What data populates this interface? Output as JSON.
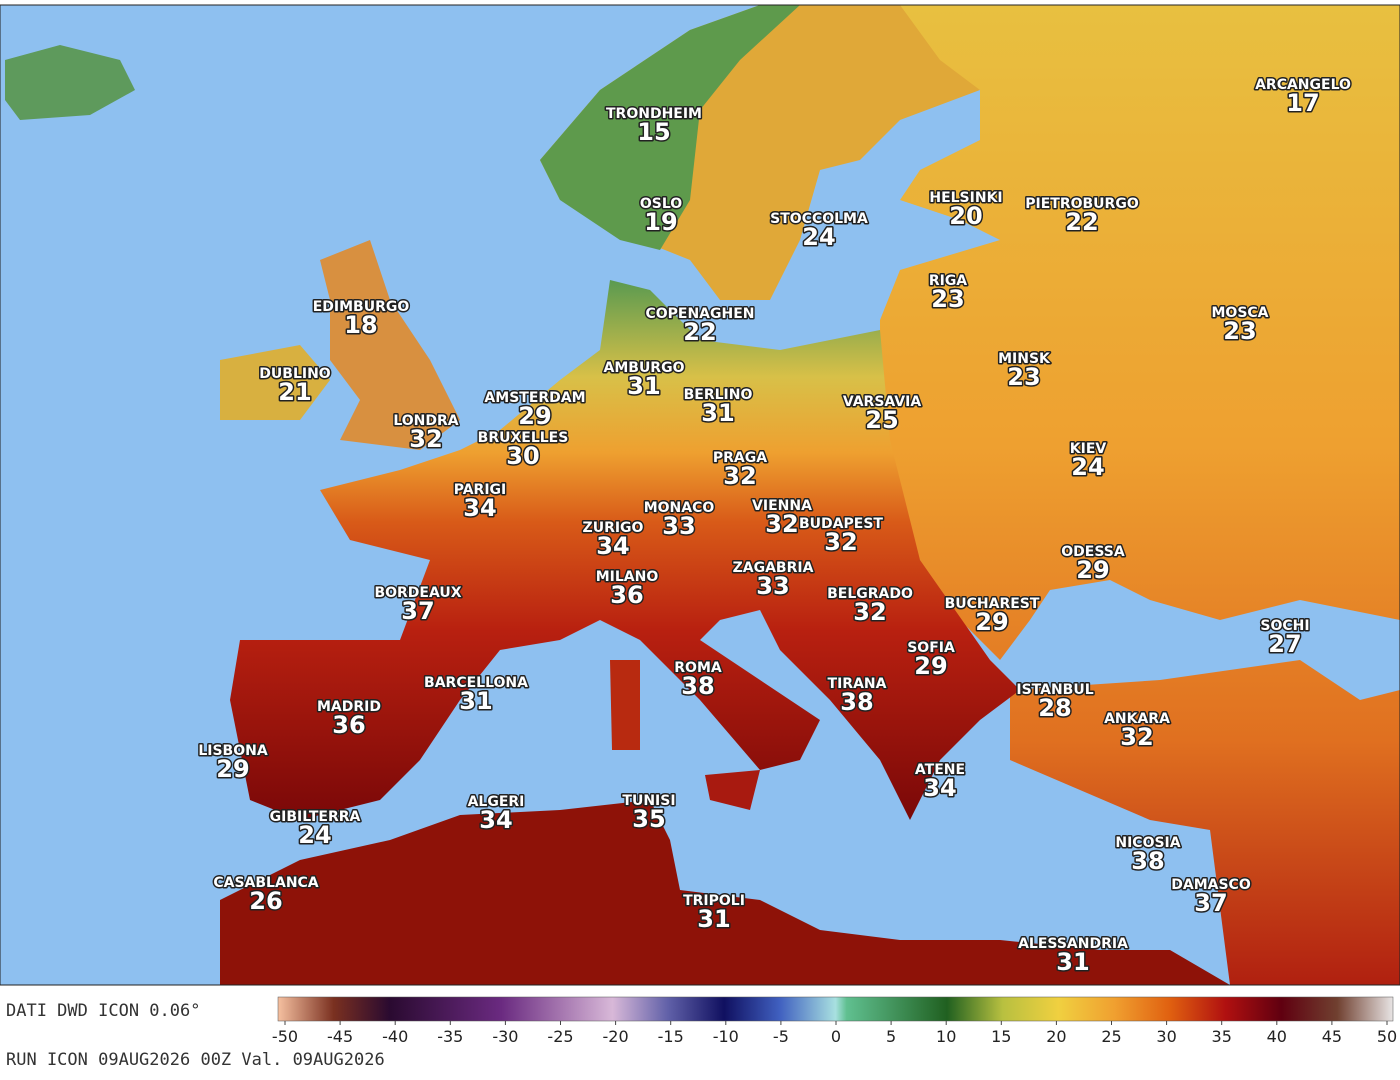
{
  "map": {
    "cities": [
      {
        "name": "TRONDHEIM",
        "value": 15
      },
      {
        "name": "OSLO",
        "value": 19
      },
      {
        "name": "STOCCOLMA",
        "value": 24
      },
      {
        "name": "HELSINKI",
        "value": 20
      },
      {
        "name": "PIETROBURGO",
        "value": 22
      },
      {
        "name": "ARCANGELO",
        "value": 17
      },
      {
        "name": "RIGA",
        "value": 23
      },
      {
        "name": "MOSCA",
        "value": 23
      },
      {
        "name": "EDIMBURGO",
        "value": 18
      },
      {
        "name": "COPENAGHEN",
        "value": 22
      },
      {
        "name": "DUBLINO",
        "value": 21
      },
      {
        "name": "AMBURGO",
        "value": 31
      },
      {
        "name": "MINSK",
        "value": 23
      },
      {
        "name": "BERLINO",
        "value": 31
      },
      {
        "name": "AMSTERDAM",
        "value": 29
      },
      {
        "name": "VARSAVIA",
        "value": 25
      },
      {
        "name": "LONDRA",
        "value": 32
      },
      {
        "name": "BRUXELLES",
        "value": 30
      },
      {
        "name": "KIEV",
        "value": 24
      },
      {
        "name": "PRAGA",
        "value": 32
      },
      {
        "name": "PARIGI",
        "value": 34
      },
      {
        "name": "MONACO",
        "value": 33
      },
      {
        "name": "VIENNA",
        "value": 32
      },
      {
        "name": "BUDAPEST",
        "value": 32
      },
      {
        "name": "ZURIGO",
        "value": 34
      },
      {
        "name": "ODESSA",
        "value": 29
      },
      {
        "name": "ZAGABRIA",
        "value": 33
      },
      {
        "name": "MILANO",
        "value": 36
      },
      {
        "name": "BORDEAUX",
        "value": 37
      },
      {
        "name": "BELGRADO",
        "value": 32
      },
      {
        "name": "BUCHAREST",
        "value": 29
      },
      {
        "name": "SOCHI",
        "value": 27
      },
      {
        "name": "SOFIA",
        "value": 29
      },
      {
        "name": "ROMA",
        "value": 38
      },
      {
        "name": "BARCELLONA",
        "value": 31
      },
      {
        "name": "TIRANA",
        "value": 38
      },
      {
        "name": "ISTANBUL",
        "value": 28
      },
      {
        "name": "MADRID",
        "value": 36
      },
      {
        "name": "ANKARA",
        "value": 32
      },
      {
        "name": "LISBONA",
        "value": 29
      },
      {
        "name": "ATENE",
        "value": 34
      },
      {
        "name": "ALGERI",
        "value": 34
      },
      {
        "name": "TUNISI",
        "value": 35
      },
      {
        "name": "GIBILTERRA",
        "value": 24
      },
      {
        "name": "NICOSIA",
        "value": 38
      },
      {
        "name": "CASABLANCA",
        "value": 26
      },
      {
        "name": "DAMASCO",
        "value": 37
      },
      {
        "name": "TRIPOLI",
        "value": 31
      },
      {
        "name": "ALESSANDRIA",
        "value": 31
      }
    ]
  },
  "footer": {
    "source": "DATI DWD ICON 0.06°",
    "run": "RUN ICON 09AUG2026 00Z Val. 09AUG2026"
  },
  "colorbar": {
    "lim": [
      -50,
      50
    ],
    "ticks": [
      -50,
      -45,
      -40,
      -35,
      -30,
      -25,
      -20,
      -15,
      -10,
      -5,
      0,
      5,
      10,
      15,
      20,
      25,
      30,
      35,
      40,
      45,
      50
    ]
  }
}
